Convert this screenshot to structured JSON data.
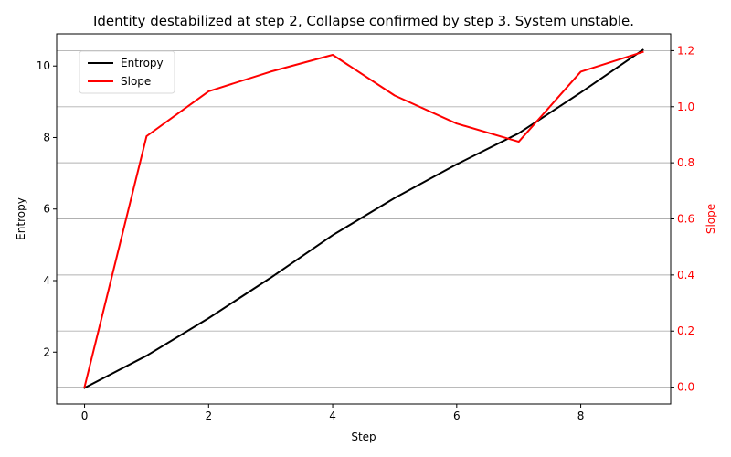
{
  "chart_data": {
    "type": "line",
    "title": "Identity destabilized at step 2, Collapse confirmed by step 3. System unstable.",
    "xlabel": "Step",
    "ylabel_left": "Entropy",
    "ylabel_right": "Slope",
    "x": [
      0,
      1,
      2,
      3,
      4,
      5,
      6,
      7,
      8,
      9
    ],
    "xlim": [
      -0.45,
      9.45
    ],
    "xticks": [
      0,
      2,
      4,
      6,
      8
    ],
    "ylim_left": [
      0.55,
      10.9
    ],
    "yticks_left": [
      2,
      4,
      6,
      8,
      10
    ],
    "ylim_right": [
      -0.06,
      1.26
    ],
    "yticks_right": [
      0.0,
      0.2,
      0.4,
      0.6,
      0.8,
      1.0,
      1.2
    ],
    "grid": "right-axis horizontal",
    "legend_position": "upper-left",
    "series": [
      {
        "name": "Entropy",
        "axis": "left",
        "color": "#000000",
        "values": [
          1.0,
          1.9,
          2.95,
          4.08,
          5.27,
          6.31,
          7.25,
          8.12,
          9.26,
          10.45
        ]
      },
      {
        "name": "Slope",
        "axis": "right",
        "color": "#ff0000",
        "values": [
          0.0,
          0.895,
          1.055,
          1.125,
          1.185,
          1.04,
          0.94,
          0.875,
          1.125,
          1.195
        ]
      }
    ]
  }
}
